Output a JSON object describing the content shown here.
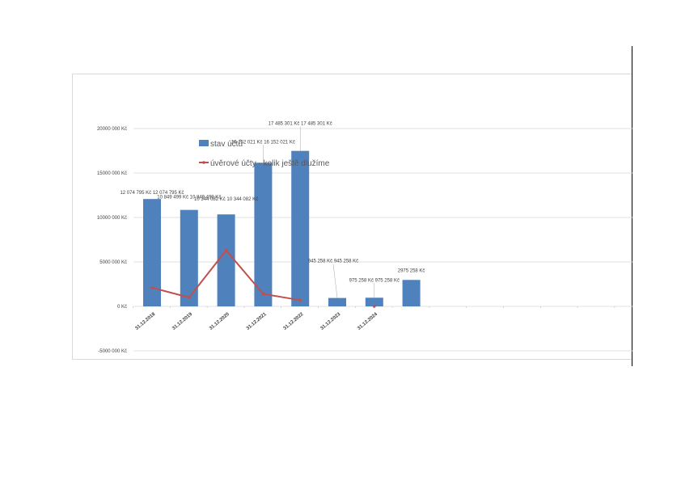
{
  "chart_data": {
    "type": "bar",
    "categories": [
      "31.12.2018",
      "31.12.2019",
      "31.12.2020",
      "31.12.2021",
      "31.12.2022",
      "31.12.2023",
      "31.12.2024",
      ""
    ],
    "series": [
      {
        "name": "stav účtů",
        "type": "bar",
        "values": [
          12074795,
          10849499,
          10344082,
          16152021,
          17485301,
          945258,
          975258,
          2975258
        ],
        "labels": [
          "12 074 795 Kč 12 074 795 Kč",
          "10 849 499 Kč 10 849 499 Kč",
          "10 344 082 Kč 10 344 082 Kč",
          "16 152 021 Kč 16 152 021 Kč",
          "17 485 301 Kč 17 485 301 Kč",
          "945 258 Kč 945 258 Kč",
          "975 258 Kč 975 258 Kč",
          "2975 258 Kč"
        ]
      },
      {
        "name": "úvěrové účty - kolik ještě dlužíme",
        "type": "line",
        "values": [
          2100000,
          1000000,
          6300000,
          1400000,
          700000,
          null,
          0,
          null
        ]
      }
    ],
    "yticks": [
      20000000,
      15000000,
      10000000,
      5000000,
      0,
      -5000000
    ],
    "ytick_labels": [
      "20000 000 Kč",
      "15000 000 Kč",
      "10000 000 Kč",
      "5000 000 Kč",
      "0 Kč",
      "-5000 000 Kč"
    ],
    "ylim": [
      -5000000,
      20000000
    ],
    "grid": true,
    "legend_position": "top-left",
    "colors": {
      "bar": "#4f81bd",
      "line": "#c0504d",
      "grid": "#d9d9d9",
      "text": "#404040"
    }
  }
}
